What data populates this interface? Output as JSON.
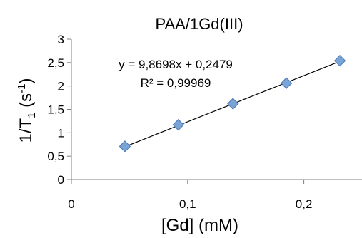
{
  "chart_data": {
    "type": "scatter",
    "title": "PAA/1Gd(III)",
    "xlabel": "[Gd] (mM)",
    "ylabel": {
      "main": "1/T",
      "sub": "1",
      "unit_open": " (s",
      "unit_sup": "-1",
      "unit_close": ")"
    },
    "xlim": [
      0,
      0.25
    ],
    "ylim": [
      0,
      3
    ],
    "x_ticks": [
      {
        "value": 0,
        "label": "0"
      },
      {
        "value": 0.1,
        "label": "0,1"
      },
      {
        "value": 0.2,
        "label": "0,2"
      }
    ],
    "y_ticks": [
      {
        "value": 0,
        "label": "0"
      },
      {
        "value": 0.5,
        "label": "0,5"
      },
      {
        "value": 1,
        "label": "1"
      },
      {
        "value": 1.5,
        "label": "1,5"
      },
      {
        "value": 2,
        "label": "2"
      },
      {
        "value": 2.5,
        "label": "2,5"
      },
      {
        "value": 3,
        "label": "3"
      }
    ],
    "series": [
      {
        "points": [
          {
            "x": 0.046,
            "y": 0.71
          },
          {
            "x": 0.092,
            "y": 1.17
          },
          {
            "x": 0.139,
            "y": 1.62
          },
          {
            "x": 0.185,
            "y": 2.06
          },
          {
            "x": 0.231,
            "y": 2.54
          }
        ]
      }
    ],
    "trendline": {
      "slope": 9.8698,
      "intercept": 0.2479,
      "x_range": [
        0.046,
        0.231
      ],
      "equation": "y = 9,8698x + 0,2479",
      "r2": "R² = 0,99969"
    },
    "marker_color": "#7aa3d6",
    "marker_stroke": "#4a78b5",
    "line_color": "#000000",
    "grid": false,
    "legend": false
  }
}
